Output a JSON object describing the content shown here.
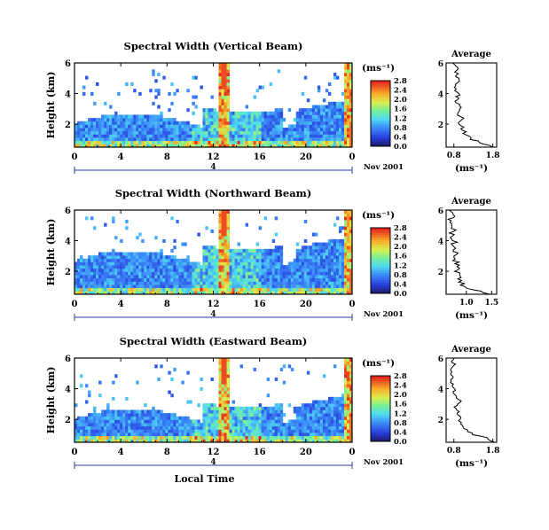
{
  "chart_data": [
    {
      "type": "heatmap",
      "title": "Spectral Width (Vertical Beam)",
      "ylabel": "Height (km)",
      "x_ticks": [
        "0",
        "4",
        "8",
        "12",
        "16",
        "20",
        "0"
      ],
      "y_ticks": [
        "2",
        "4",
        "6"
      ],
      "xlim": [
        0,
        24
      ],
      "ylim": [
        0.5,
        6
      ],
      "date_label": "Nov 2001",
      "day_marker": "4",
      "colorbar": {
        "unit": "(ms⁻¹)",
        "ticks": [
          "0.0",
          "0.4",
          "0.8",
          "1.2",
          "1.6",
          "2.0",
          "2.4",
          "2.8"
        ]
      },
      "average": {
        "title": "Average",
        "xlabel": "(ms⁻¹)",
        "x_ticks": [
          "0.8",
          "1.8"
        ],
        "xlim": [
          0.6,
          1.9
        ],
        "y_ticks": [
          "2",
          "4",
          "6"
        ],
        "profile": {
          "height_km": [
            0.5,
            0.8,
            1.0,
            1.3,
            1.6,
            2.0,
            2.4,
            2.8,
            3.2,
            3.6,
            4.0,
            4.4,
            4.8,
            5.2,
            5.6,
            6.0
          ],
          "value": [
            1.8,
            1.5,
            1.25,
            1.1,
            1.05,
            0.95,
            1.0,
            0.9,
            0.95,
            0.85,
            0.95,
            0.8,
            0.9,
            0.85,
            0.9,
            0.8
          ]
        }
      }
    },
    {
      "type": "heatmap",
      "title": "Spectral Width (Northward Beam)",
      "ylabel": "Height (km)",
      "x_ticks": [
        "0",
        "4",
        "8",
        "12",
        "16",
        "20",
        "0"
      ],
      "y_ticks": [
        "2",
        "4",
        "6"
      ],
      "xlim": [
        0,
        24
      ],
      "ylim": [
        0.5,
        6
      ],
      "date_label": "Nov 2001",
      "day_marker": "4",
      "colorbar": {
        "unit": "(ms⁻¹)",
        "ticks": [
          "0.0",
          "0.4",
          "0.8",
          "1.2",
          "1.6",
          "2.0",
          "2.4",
          "2.8"
        ]
      },
      "average": {
        "title": "Average",
        "xlabel": "(ms⁻¹)",
        "x_ticks": [
          "1.0",
          "1.5"
        ],
        "xlim": [
          0.6,
          1.6
        ],
        "y_ticks": [
          "2",
          "4",
          "6"
        ],
        "profile": {
          "height_km": [
            0.5,
            0.8,
            1.0,
            1.3,
            1.6,
            2.0,
            2.4,
            2.8,
            3.2,
            3.6,
            4.0,
            4.4,
            4.8,
            5.2,
            5.6,
            6.0
          ],
          "value": [
            1.5,
            1.1,
            0.95,
            0.9,
            0.85,
            0.8,
            0.85,
            0.75,
            0.8,
            0.72,
            0.78,
            0.7,
            0.75,
            0.68,
            0.72,
            0.7
          ]
        }
      }
    },
    {
      "type": "heatmap",
      "title": "Spectral Width (Eastward Beam)",
      "ylabel": "Height (km)",
      "xlabel": "Local Time",
      "x_ticks": [
        "0",
        "4",
        "8",
        "12",
        "16",
        "20",
        "0"
      ],
      "y_ticks": [
        "2",
        "4",
        "6"
      ],
      "xlim": [
        0,
        24
      ],
      "ylim": [
        0.5,
        6
      ],
      "date_label": "Nov 2001",
      "day_marker": "4",
      "colorbar": {
        "unit": "(ms⁻¹)",
        "ticks": [
          "0.0",
          "0.4",
          "0.8",
          "1.2",
          "1.6",
          "2.0",
          "2.4",
          "2.8"
        ]
      },
      "average": {
        "title": "Average",
        "xlabel": "(ms⁻¹)",
        "x_ticks": [
          "0.8",
          "1.8"
        ],
        "xlim": [
          0.6,
          1.9
        ],
        "y_ticks": [
          "2",
          "4",
          "6"
        ],
        "profile": {
          "height_km": [
            0.5,
            0.8,
            1.0,
            1.3,
            1.6,
            2.0,
            2.4,
            2.8,
            3.2,
            3.6,
            4.0,
            4.4,
            4.8,
            5.2,
            5.6,
            6.0
          ],
          "value": [
            1.9,
            1.6,
            1.3,
            1.15,
            1.0,
            0.95,
            0.9,
            0.85,
            0.95,
            0.8,
            0.85,
            0.75,
            0.8,
            0.75,
            0.8,
            0.75
          ]
        }
      }
    }
  ]
}
